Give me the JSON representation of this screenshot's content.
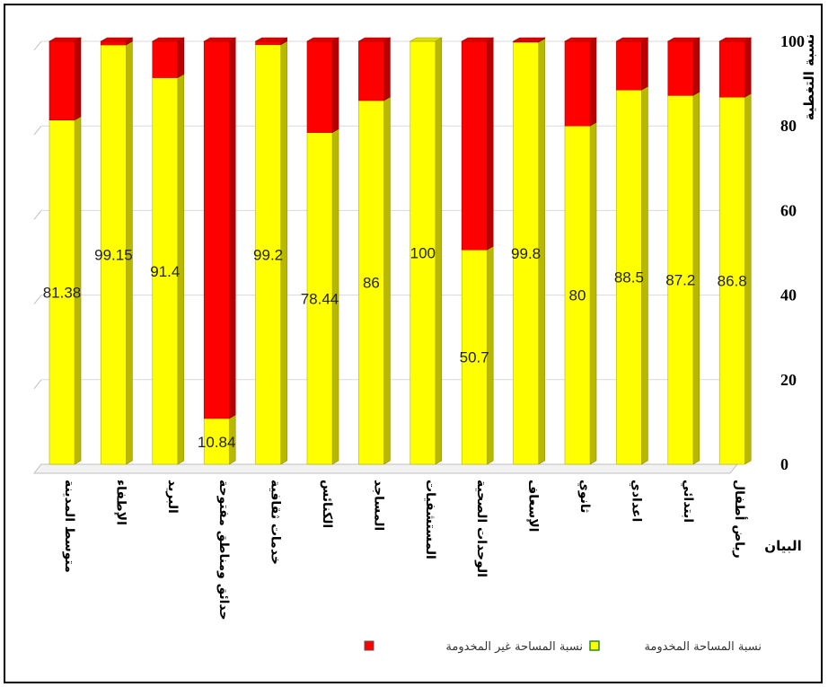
{
  "chart_data": {
    "type": "bar",
    "stacked": true,
    "categories": [
      "متوسط المدينة",
      "الإطفاء",
      "البريد",
      "حدائق ومناطق مفتوحة",
      "خدمات ثقافية",
      "الكنائس",
      "المساجد",
      "المستشفيات",
      "الوحدات الصحية",
      "الإسعاف",
      "ثانوي",
      "اعدادي",
      "ابتدائي",
      "رياض أطفال"
    ],
    "value_labels": [
      "81.38",
      "99.15",
      "91.4",
      "10.84",
      "99.2",
      "78.44",
      "86",
      "100",
      "50.7",
      "99.8",
      "80",
      "88.5",
      "87.2",
      "86.8"
    ],
    "series": [
      {
        "name": "نسبة المساحة المخدومة",
        "color": "#ffff00",
        "values": [
          81.38,
          99.15,
          91.4,
          10.84,
          99.2,
          78.44,
          86,
          100,
          50.7,
          99.8,
          80,
          88.5,
          87.2,
          86.8
        ]
      },
      {
        "name": "نسبة المساحة غير المخدومة",
        "color": "#ff0000",
        "values": [
          18.62,
          0.85,
          8.6,
          89.16,
          0.8,
          21.56,
          14,
          0,
          49.3,
          0.2,
          20,
          11.5,
          12.8,
          13.2
        ]
      }
    ],
    "xlabel": "البيان",
    "ylabel": "نسبة التغطية",
    "ylim": [
      0,
      100
    ],
    "yticks": [
      "0",
      "20",
      "40",
      "60",
      "80",
      "100"
    ],
    "grid": true,
    "legend_position": "bottom"
  }
}
